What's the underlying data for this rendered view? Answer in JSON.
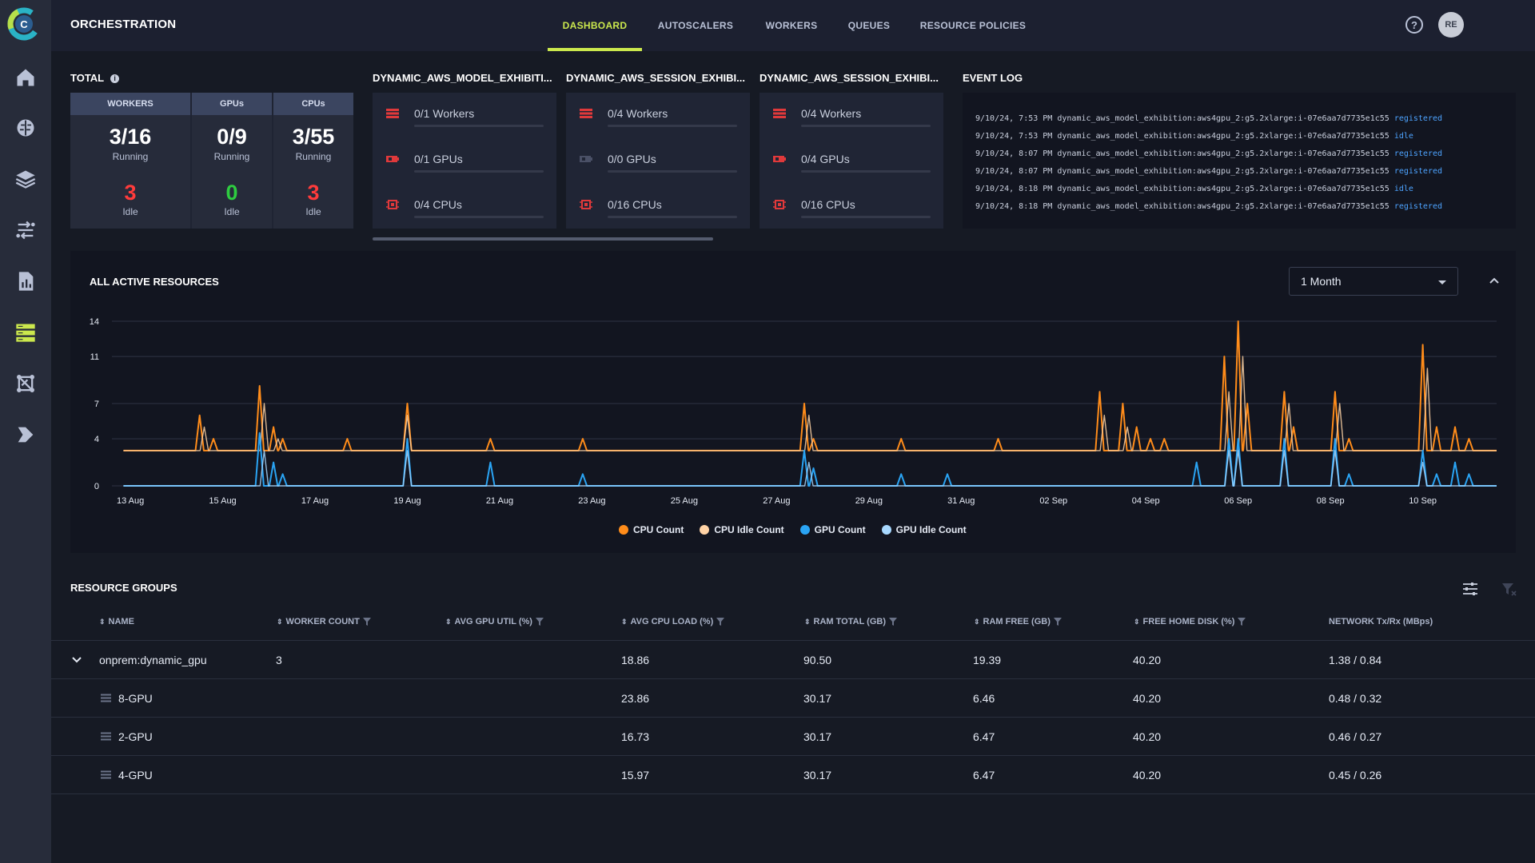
{
  "app": {
    "title": "ORCHESTRATION"
  },
  "nav": {
    "tabs": [
      {
        "label": "DASHBOARD",
        "active": true
      },
      {
        "label": "AUTOSCALERS",
        "active": false
      },
      {
        "label": "WORKERS",
        "active": false
      },
      {
        "label": "QUEUES",
        "active": false
      },
      {
        "label": "RESOURCE POLICIES",
        "active": false
      }
    ],
    "avatar": "RE",
    "help": "?"
  },
  "sidebar": {
    "items": [
      "home-icon",
      "brain-icon",
      "layers-icon",
      "pipelines-icon",
      "reports-icon",
      "orchestration-icon",
      "model-icon",
      "deploy-icon"
    ],
    "active_index": 5,
    "accent": "#cbe84d"
  },
  "total": {
    "title": "TOTAL",
    "columns": [
      {
        "header": "WORKERS",
        "running": "3/16",
        "running_label": "Running",
        "idle": "3",
        "idle_label": "Idle",
        "idle_color": "#ff3b3b"
      },
      {
        "header": "GPUs",
        "running": "0/9",
        "running_label": "Running",
        "idle": "0",
        "idle_label": "Idle",
        "idle_color": "#2ecc40"
      },
      {
        "header": "CPUs",
        "running": "3/55",
        "running_label": "Running",
        "idle": "3",
        "idle_label": "Idle",
        "idle_color": "#ff3b3b"
      }
    ]
  },
  "queues": [
    {
      "title": "DYNAMIC_AWS_MODEL_EXHIBITI...",
      "workers": "0/1 Workers",
      "gpus": "0/1 GPUs",
      "cpus": "0/4 CPUs",
      "gpu_active": true
    },
    {
      "title": "DYNAMIC_AWS_SESSION_EXHIBI...",
      "workers": "0/4 Workers",
      "gpus": "0/0 GPUs",
      "cpus": "0/16 CPUs",
      "gpu_active": false
    },
    {
      "title": "DYNAMIC_AWS_SESSION_EXHIBI...",
      "workers": "0/4 Workers",
      "gpus": "0/4 GPUs",
      "cpus": "0/16 CPUs",
      "gpu_active": true
    }
  ],
  "event_log": {
    "title": "EVENT LOG",
    "entries": [
      {
        "time": "9/10/24, 7:53 PM",
        "resource": "dynamic_aws_model_exhibition:aws4gpu_2:g5.2xlarge:i-07e6aa7d7735e1c55",
        "status": "registered"
      },
      {
        "time": "9/10/24, 7:53 PM",
        "resource": "dynamic_aws_model_exhibition:aws4gpu_2:g5.2xlarge:i-07e6aa7d7735e1c55",
        "status": "idle"
      },
      {
        "time": "9/10/24, 8:07 PM",
        "resource": "dynamic_aws_model_exhibition:aws4gpu_2:g5.2xlarge:i-07e6aa7d7735e1c55",
        "status": "registered"
      },
      {
        "time": "9/10/24, 8:07 PM",
        "resource": "dynamic_aws_model_exhibition:aws4gpu_2:g5.2xlarge:i-07e6aa7d7735e1c55",
        "status": "registered"
      },
      {
        "time": "9/10/24, 8:18 PM",
        "resource": "dynamic_aws_model_exhibition:aws4gpu_2:g5.2xlarge:i-07e6aa7d7735e1c55",
        "status": "idle"
      },
      {
        "time": "9/10/24, 8:18 PM",
        "resource": "dynamic_aws_model_exhibition:aws4gpu_2:g5.2xlarge:i-07e6aa7d7735e1c55",
        "status": "registered"
      }
    ]
  },
  "active_resources": {
    "title": "ALL ACTIVE RESOURCES",
    "range": "1 Month"
  },
  "chart_data": {
    "type": "line",
    "title": "ALL ACTIVE RESOURCES",
    "xlabel": "",
    "ylabel": "",
    "y_ticks": [
      0,
      4,
      7,
      11,
      14
    ],
    "ylim": [
      0,
      14
    ],
    "x_ticks": [
      "13 Aug",
      "15 Aug",
      "17 Aug",
      "19 Aug",
      "21 Aug",
      "23 Aug",
      "25 Aug",
      "27 Aug",
      "29 Aug",
      "31 Aug",
      "02 Sep",
      "04 Sep",
      "06 Sep",
      "08 Sep",
      "10 Sep"
    ],
    "x_range_days": [
      -0.4,
      29.6
    ],
    "grid": true,
    "legend_position": "bottom",
    "series": [
      {
        "name": "CPU Count",
        "color": "#ff8c1a",
        "baseline": 3,
        "spikes": [
          [
            1.5,
            6
          ],
          [
            1.8,
            4
          ],
          [
            2.8,
            8.5
          ],
          [
            3.1,
            5
          ],
          [
            3.3,
            4
          ],
          [
            4.7,
            4
          ],
          [
            6.0,
            7
          ],
          [
            7.8,
            4
          ],
          [
            9.8,
            4
          ],
          [
            14.6,
            7
          ],
          [
            14.8,
            4
          ],
          [
            16.7,
            4
          ],
          [
            18.8,
            4
          ],
          [
            21.0,
            8
          ],
          [
            21.5,
            7
          ],
          [
            21.8,
            5
          ],
          [
            22.1,
            4
          ],
          [
            22.4,
            4
          ],
          [
            23.7,
            11
          ],
          [
            24.0,
            14
          ],
          [
            24.2,
            7
          ],
          [
            25.0,
            8
          ],
          [
            25.2,
            5
          ],
          [
            26.1,
            8
          ],
          [
            26.4,
            4
          ],
          [
            28.0,
            12
          ],
          [
            28.3,
            5
          ],
          [
            28.7,
            5
          ],
          [
            29.0,
            4
          ]
        ]
      },
      {
        "name": "CPU Idle Count",
        "color": "#ffd3a6",
        "baseline": 3,
        "spikes": [
          [
            1.6,
            5
          ],
          [
            2.9,
            7
          ],
          [
            3.2,
            4
          ],
          [
            6.0,
            6
          ],
          [
            14.7,
            6
          ],
          [
            21.1,
            6
          ],
          [
            21.6,
            5
          ],
          [
            23.8,
            8
          ],
          [
            24.1,
            11
          ],
          [
            25.1,
            7
          ],
          [
            26.2,
            7
          ],
          [
            28.1,
            10
          ]
        ]
      },
      {
        "name": "GPU Count",
        "color": "#2aa4f4",
        "baseline": 0,
        "spikes": [
          [
            2.8,
            4.5
          ],
          [
            3.1,
            2
          ],
          [
            3.3,
            1
          ],
          [
            6.0,
            4
          ],
          [
            7.8,
            2
          ],
          [
            9.8,
            1
          ],
          [
            14.6,
            3
          ],
          [
            14.8,
            1.5
          ],
          [
            16.7,
            1
          ],
          [
            17.7,
            1
          ],
          [
            23.1,
            2
          ],
          [
            23.8,
            4
          ],
          [
            24.0,
            4
          ],
          [
            25.0,
            4
          ],
          [
            26.1,
            4
          ],
          [
            26.4,
            1
          ],
          [
            28.0,
            3
          ],
          [
            28.3,
            1
          ],
          [
            28.7,
            2
          ],
          [
            29.0,
            1
          ]
        ]
      },
      {
        "name": "GPU Idle Count",
        "color": "#a8d8ff",
        "baseline": 0,
        "spikes": [
          [
            2.9,
            3
          ],
          [
            6.0,
            3
          ],
          [
            14.7,
            2
          ],
          [
            23.8,
            3
          ],
          [
            24.0,
            3
          ],
          [
            25.0,
            3
          ],
          [
            26.1,
            3
          ],
          [
            28.0,
            2
          ]
        ]
      }
    ]
  },
  "resource_groups": {
    "title": "RESOURCE GROUPS",
    "columns": [
      "NAME",
      "WORKER COUNT",
      "AVG GPU UTIL (%)",
      "AVG CPU LOAD (%)",
      "RAM TOTAL (GB)",
      "RAM FREE (GB)",
      "FREE HOME DISK (%)",
      "NETWORK Tx/Rx (MBps)"
    ],
    "rows": [
      {
        "name": "onprem:dynamic_gpu",
        "expandable": true,
        "cells": [
          "3",
          "",
          "18.86",
          "90.50",
          "19.39",
          "40.20",
          "1.38 / 0.84"
        ]
      },
      {
        "name": "8-GPU",
        "expandable": false,
        "cells": [
          "",
          "",
          "23.86",
          "30.17",
          "6.46",
          "40.20",
          "0.48 / 0.32"
        ]
      },
      {
        "name": "2-GPU",
        "expandable": false,
        "cells": [
          "",
          "",
          "16.73",
          "30.17",
          "6.47",
          "40.20",
          "0.46 / 0.27"
        ]
      },
      {
        "name": "4-GPU",
        "expandable": false,
        "cells": [
          "",
          "",
          "15.97",
          "30.17",
          "6.47",
          "40.20",
          "0.45 / 0.26"
        ]
      }
    ]
  }
}
